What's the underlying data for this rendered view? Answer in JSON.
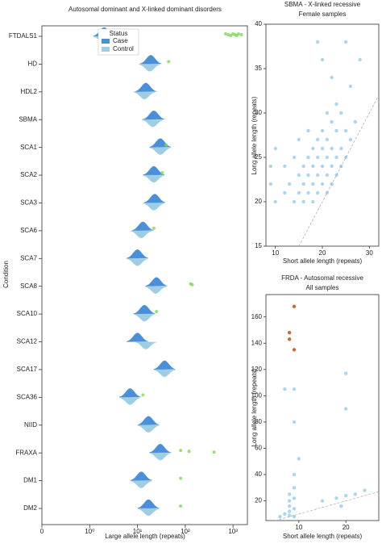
{
  "chart_data": [
    {
      "type": "split-violin",
      "title": "Autosomal dominant and X-linked dominant disorders",
      "xlabel": "Large allele length (repeats)",
      "ylabel": "Condition",
      "categories": [
        "FTDALS1",
        "HD",
        "HDL2",
        "SBMA",
        "SCA1",
        "SCA2",
        "SCA3",
        "SCA6",
        "SCA7",
        "SCA8",
        "SCA10",
        "SCA12",
        "SCA17",
        "SCA36",
        "NIID",
        "FRAXA",
        "DM1",
        "DM2"
      ],
      "legend_title": "Status",
      "series": [
        {
          "name": "Case",
          "color": "#4a8fd8",
          "values": [
            2,
            19,
            15,
            22,
            30,
            22,
            23,
            13,
            10,
            25,
            14,
            10,
            37,
            7,
            17,
            30,
            12,
            17
          ]
        },
        {
          "name": "Control",
          "color": "#9fcde2",
          "values": [
            2,
            18,
            14,
            21,
            30,
            22,
            22,
            12,
            10,
            24,
            14,
            15,
            37,
            7,
            17,
            30,
            12,
            17
          ]
        }
      ],
      "outliers": [
        [
          700,
          800,
          900,
          1000,
          1100,
          1200,
          1300,
          1500
        ],
        [
          45
        ],
        [],
        [],
        [
          40
        ],
        [
          33
        ],
        [],
        [
          22
        ],
        [],
        [
          130,
          140
        ],
        [
          25
        ],
        [],
        [],
        [
          13
        ],
        [],
        [
          80,
          120,
          400
        ],
        [
          80
        ],
        [
          80
        ]
      ],
      "outlier_color": "#7ed957",
      "xscale": "symlog",
      "xlim": [
        0,
        2000
      ],
      "xticks": [
        {
          "value": 0,
          "label": "0"
        },
        {
          "value": 1,
          "label": "10⁰"
        },
        {
          "value": 10,
          "label": "10¹"
        },
        {
          "value": 100,
          "label": "10²"
        },
        {
          "value": 1000,
          "label": "10³"
        }
      ],
      "legend": "upper left"
    },
    {
      "type": "scatter",
      "title": "SBMA - X-linked recessive",
      "subtitle": "Female samples",
      "xlabel": "Short allele length (repeats)",
      "ylabel": "Long allele length (repeats)",
      "xlim": [
        8,
        32
      ],
      "ylim": [
        15,
        40
      ],
      "xticks": [
        10,
        20,
        30
      ],
      "yticks": [
        15,
        20,
        25,
        30,
        35,
        40
      ],
      "series": [
        {
          "color": "#4aa3d8",
          "x": [
            9,
            9,
            10,
            10,
            12,
            12,
            13,
            14,
            14,
            15,
            15,
            15,
            16,
            16,
            16,
            17,
            17,
            17,
            17,
            18,
            18,
            18,
            18,
            19,
            19,
            19,
            19,
            20,
            20,
            20,
            20,
            21,
            21,
            21,
            21,
            21,
            22,
            22,
            22,
            22,
            23,
            23,
            23,
            23,
            24,
            24,
            24,
            25,
            25,
            26,
            26,
            27,
            28,
            22,
            20,
            19,
            25
          ],
          "y": [
            22,
            24,
            20,
            26,
            21,
            24,
            22,
            20,
            25,
            21,
            23,
            27,
            20,
            22,
            24,
            21,
            23,
            25,
            28,
            20,
            22,
            24,
            26,
            21,
            23,
            25,
            27,
            22,
            24,
            26,
            28,
            21,
            23,
            25,
            27,
            30,
            22,
            24,
            26,
            29,
            23,
            25,
            28,
            31,
            24,
            26,
            30,
            25,
            28,
            27,
            33,
            29,
            36,
            34,
            36,
            38,
            38
          ]
        }
      ]
    },
    {
      "type": "scatter",
      "title": "FRDA - Autosomal recessive",
      "subtitle": "All samples",
      "xlabel": "Short allele length (repeats)",
      "ylabel": "Long allele length (repeats)",
      "xlim": [
        3,
        27
      ],
      "ylim": [
        5,
        177
      ],
      "xticks": [
        10,
        20
      ],
      "yticks": [
        20,
        40,
        60,
        80,
        100,
        120,
        140,
        160
      ],
      "series": [
        {
          "color": "#4aa3d8",
          "x": [
            8,
            8,
            8,
            8,
            8,
            9,
            9,
            9,
            9,
            7,
            6,
            9,
            9,
            7,
            20,
            20,
            10,
            15,
            18,
            20,
            22,
            24,
            19,
            9
          ],
          "y": [
            9,
            12,
            16,
            20,
            25,
            8,
            14,
            22,
            30,
            10,
            8,
            80,
            105,
            105,
            117,
            90,
            52,
            20,
            22,
            24,
            25,
            28,
            16,
            40
          ]
        },
        {
          "color": "#c8602a",
          "x": [
            9,
            8,
            8,
            9
          ],
          "y": [
            168,
            148,
            143,
            135
          ]
        }
      ]
    }
  ]
}
